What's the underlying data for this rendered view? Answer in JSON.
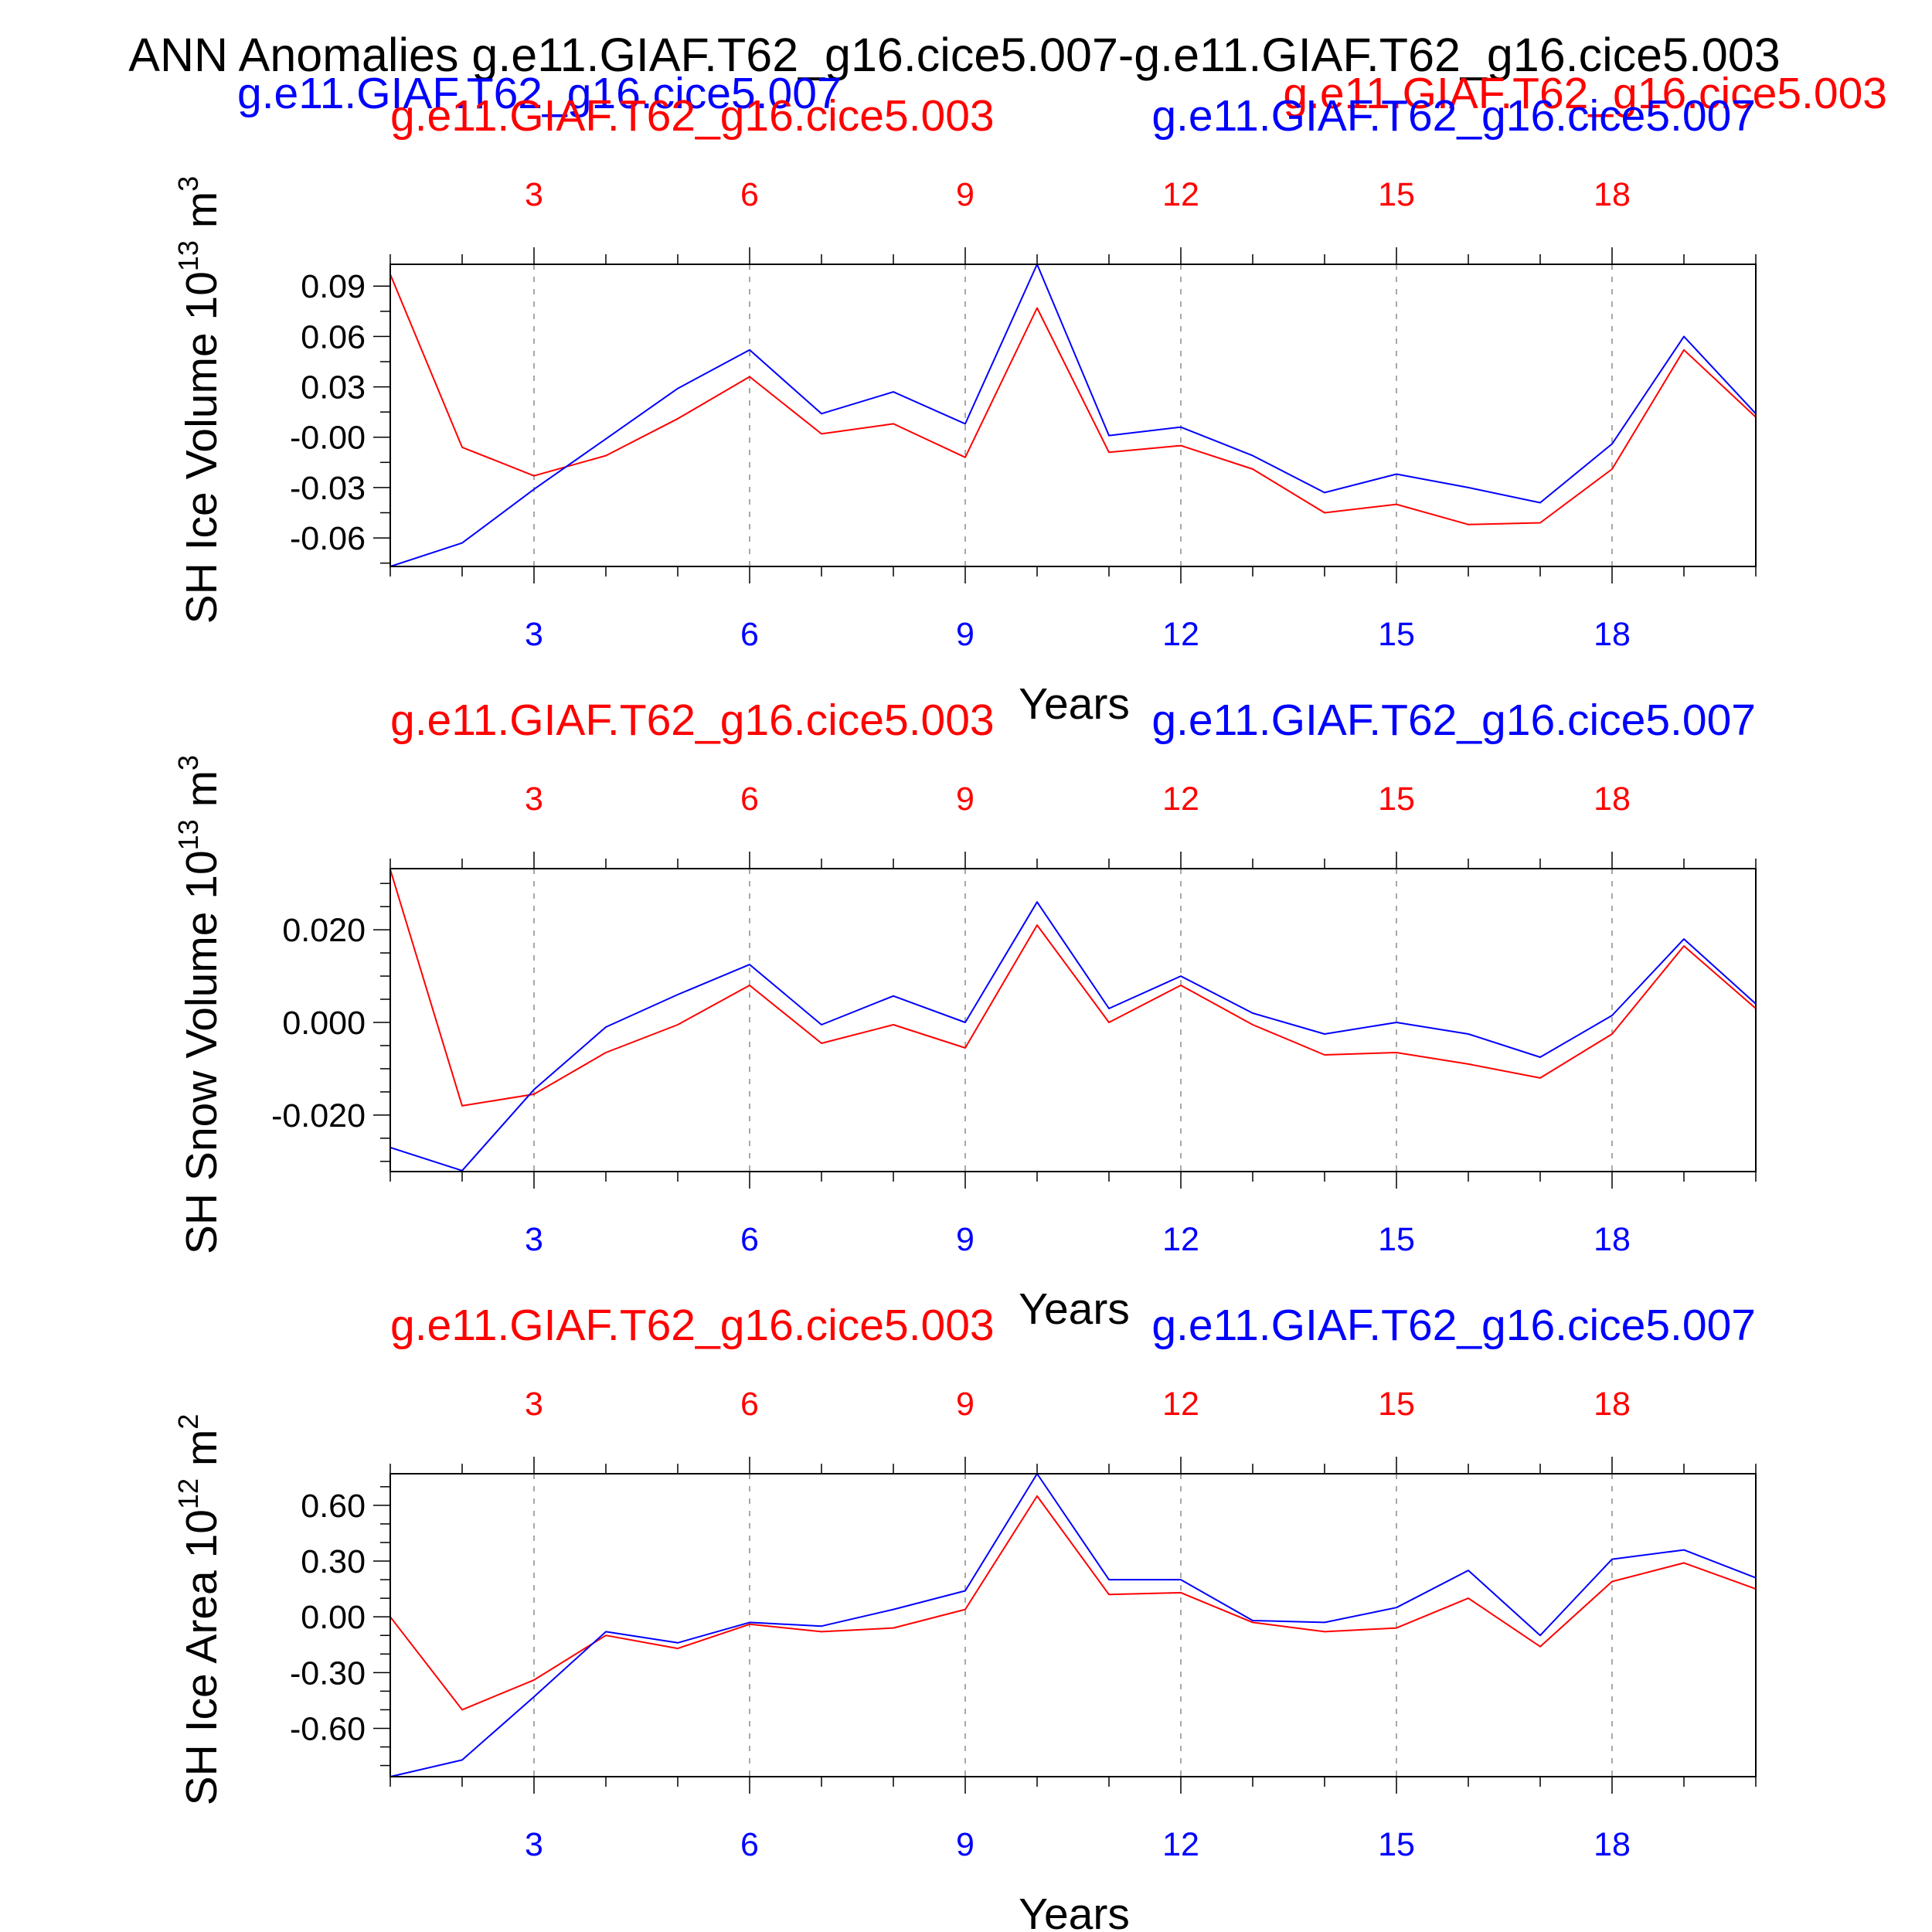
{
  "figure": {
    "title": "ANN Anomalies g.e11.GIAF.T62_g16.cice5.007-g.e11.GIAF.T62_g16.cice5.003",
    "top_labels": {
      "left": "g.e11.GIAF.T62_g16.cice5.007",
      "right": "g.e11.GIAF.T62_g16.cice5.003"
    },
    "colors": {
      "run_003": "#ff0000",
      "run_007": "#0000ff",
      "axis": "#000000",
      "grid": "#8c8c8c"
    }
  },
  "chart_data": [
    {
      "type": "line",
      "title": "",
      "legend_left": "g.e11.GIAF.T62_g16.cice5.003",
      "legend_right": "g.e11.GIAF.T62_g16.cice5.007",
      "ylabel": "SH Ice Volume 10",
      "ylabel_exp": "13",
      "ylabel_unit": " m",
      "ylabel_unit_exp": "3",
      "xlabel": "Years",
      "x": [
        1,
        2,
        3,
        4,
        5,
        6,
        7,
        8,
        9,
        10,
        11,
        12,
        13,
        14,
        15,
        16,
        17,
        18,
        19,
        20
      ],
      "xlim": [
        1,
        20
      ],
      "ylim": [
        -0.077,
        0.103
      ],
      "xticks": [
        3,
        6,
        9,
        12,
        15,
        18
      ],
      "xtick_labels": [
        "3",
        "6",
        "9",
        "12",
        "15",
        "18"
      ],
      "yticks": [
        0.09,
        0.06,
        0.03,
        0.0,
        -0.03,
        -0.06
      ],
      "ytick_labels": [
        "0.09",
        "0.06",
        "0.03",
        "-0.00",
        "-0.03",
        "-0.06"
      ],
      "yminor": 0.015,
      "grid": "vertical dashed at major x ticks",
      "series": [
        {
          "name": "g.e11.GIAF.T62_g16.cice5.003",
          "color": "#ff0000",
          "values": [
            0.097,
            -0.006,
            -0.023,
            -0.011,
            0.011,
            0.036,
            0.002,
            0.008,
            -0.012,
            0.077,
            -0.009,
            -0.005,
            -0.019,
            -0.045,
            -0.04,
            -0.052,
            -0.051,
            -0.019,
            0.052,
            0.012
          ]
        },
        {
          "name": "g.e11.GIAF.T62_g16.cice5.007",
          "color": "#0000ff",
          "values": [
            -0.077,
            -0.063,
            -0.031,
            -0.001,
            0.029,
            0.052,
            0.014,
            0.027,
            0.008,
            0.103,
            0.001,
            0.006,
            -0.011,
            -0.033,
            -0.022,
            -0.03,
            -0.039,
            -0.004,
            0.06,
            0.014
          ]
        }
      ]
    },
    {
      "type": "line",
      "title": "",
      "legend_left": "g.e11.GIAF.T62_g16.cice5.003",
      "legend_right": "g.e11.GIAF.T62_g16.cice5.007",
      "ylabel": "SH Snow Volume 10",
      "ylabel_exp": "13",
      "ylabel_unit": " m",
      "ylabel_unit_exp": "3",
      "xlabel": "Years",
      "x": [
        1,
        2,
        3,
        4,
        5,
        6,
        7,
        8,
        9,
        10,
        11,
        12,
        13,
        14,
        15,
        16,
        17,
        18,
        19,
        20
      ],
      "xlim": [
        1,
        20
      ],
      "ylim": [
        -0.0322,
        0.0332
      ],
      "xticks": [
        3,
        6,
        9,
        12,
        15,
        18
      ],
      "xtick_labels": [
        "3",
        "6",
        "9",
        "12",
        "15",
        "18"
      ],
      "yticks": [
        0.02,
        0.0,
        -0.02
      ],
      "ytick_labels": [
        "0.020",
        "0.000",
        "-0.020"
      ],
      "yminor": 0.005,
      "grid": "vertical dashed at major x ticks",
      "series": [
        {
          "name": "g.e11.GIAF.T62_g16.cice5.003",
          "color": "#ff0000",
          "values": [
            0.033,
            -0.018,
            -0.0155,
            -0.0065,
            -0.0005,
            0.008,
            -0.0045,
            -0.0005,
            -0.0055,
            0.021,
            0.0,
            0.008,
            -0.0005,
            -0.007,
            -0.0065,
            -0.009,
            -0.012,
            -0.0025,
            0.0165,
            0.003
          ]
        },
        {
          "name": "g.e11.GIAF.T62_g16.cice5.007",
          "color": "#0000ff",
          "values": [
            -0.027,
            -0.032,
            -0.0145,
            -0.001,
            0.006,
            0.0125,
            -0.0005,
            0.0057,
            0.0,
            0.026,
            0.003,
            0.01,
            0.002,
            -0.0025,
            0.0,
            -0.0025,
            -0.0075,
            0.0015,
            0.018,
            0.004
          ]
        }
      ]
    },
    {
      "type": "line",
      "title": "",
      "legend_left": "g.e11.GIAF.T62_g16.cice5.003",
      "legend_right": "g.e11.GIAF.T62_g16.cice5.007",
      "ylabel": "SH Ice Area 10",
      "ylabel_exp": "12",
      "ylabel_unit": " m",
      "ylabel_unit_exp": "2",
      "xlabel": "Years",
      "x": [
        1,
        2,
        3,
        4,
        5,
        6,
        7,
        8,
        9,
        10,
        11,
        12,
        13,
        14,
        15,
        16,
        17,
        18,
        19,
        20
      ],
      "xlim": [
        1,
        20
      ],
      "ylim": [
        -0.86,
        0.77
      ],
      "xticks": [
        3,
        6,
        9,
        12,
        15,
        18
      ],
      "xtick_labels": [
        "3",
        "6",
        "9",
        "12",
        "15",
        "18"
      ],
      "yticks": [
        0.6,
        0.3,
        0.0,
        -0.3,
        -0.6
      ],
      "ytick_labels": [
        "0.60",
        "0.30",
        "0.00",
        "-0.30",
        "-0.60"
      ],
      "yminor": 0.1,
      "grid": "vertical dashed at major x ticks",
      "series": [
        {
          "name": "g.e11.GIAF.T62_g16.cice5.003",
          "color": "#ff0000",
          "values": [
            0.0,
            -0.5,
            -0.34,
            -0.1,
            -0.17,
            -0.04,
            -0.08,
            -0.06,
            0.04,
            0.65,
            0.12,
            0.13,
            -0.03,
            -0.08,
            -0.06,
            0.1,
            -0.16,
            0.19,
            0.29,
            0.15
          ]
        },
        {
          "name": "g.e11.GIAF.T62_g16.cice5.007",
          "color": "#0000ff",
          "values": [
            -0.86,
            -0.77,
            -0.43,
            -0.08,
            -0.14,
            -0.03,
            -0.05,
            0.04,
            0.14,
            0.77,
            0.2,
            0.2,
            -0.02,
            -0.03,
            0.05,
            0.25,
            -0.1,
            0.31,
            0.36,
            0.21
          ]
        }
      ]
    }
  ]
}
